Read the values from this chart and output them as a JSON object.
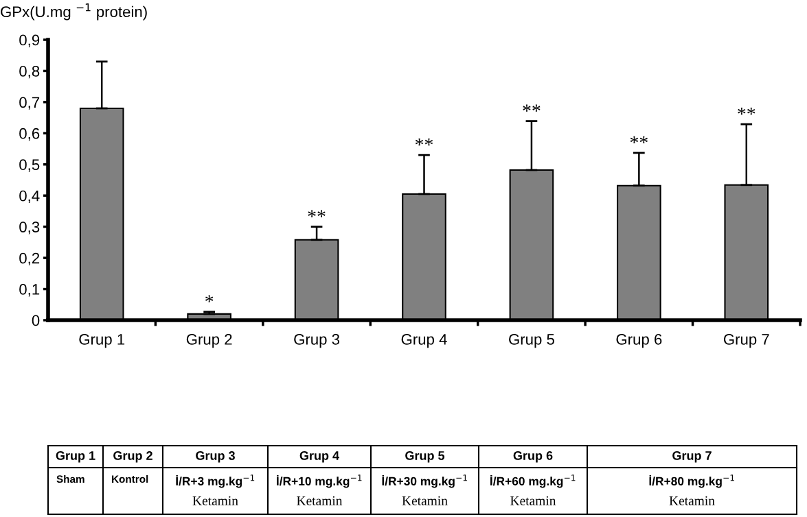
{
  "chart_data": {
    "type": "bar",
    "ylabel": "GPx(U.mg $^{−1}$ protein)",
    "categories": [
      "Grup 1",
      "Grup 2",
      "Grup 3",
      "Grup 4",
      "Grup 5",
      "Grup 6",
      "Grup 7"
    ],
    "values": [
      0.68,
      0.02,
      0.258,
      0.405,
      0.482,
      0.432,
      0.434
    ],
    "errors": [
      [
        0.68,
        0.83
      ],
      [
        0.02,
        0.027
      ],
      [
        0.258,
        0.3
      ],
      [
        0.405,
        0.53
      ],
      [
        0.482,
        0.639
      ],
      [
        0.432,
        0.537
      ],
      [
        0.434,
        0.629
      ]
    ],
    "color": "#808080",
    "ylim": [
      0,
      0.9
    ],
    "yticks": [
      {
        "value": 0,
        "label": "0"
      },
      {
        "value": 0.1,
        "label": "0,1"
      },
      {
        "value": 0.2,
        "label": "0,2"
      },
      {
        "value": 0.3,
        "label": "0,3"
      },
      {
        "value": 0.4,
        "label": "0,4"
      },
      {
        "value": 0.5,
        "label": "0,5"
      },
      {
        "value": 0.6,
        "label": "0,6"
      },
      {
        "value": 0.7,
        "label": "0,7"
      },
      {
        "value": 0.8,
        "label": "0,8"
      },
      {
        "value": 0.9,
        "label": "0,9"
      }
    ],
    "grid": false,
    "legend": false,
    "annotations": [
      "*",
      "**",
      "**",
      "**",
      "**",
      "**",
      "Sham",
      "Kontrol",
      "İ/R+3 mg.kg$^{−1}$\nKetamin",
      "İ/R+10 mg.kg$^{−1}$\nKetamin",
      "İ/R+30 mg.kg$^{−1}$\nKetamin",
      "İ/R+60 mg.kg$^{−1}$\nKetamin",
      "İ/R+80 mg.kg$^{−1}$\nKetamin"
    ]
  }
}
